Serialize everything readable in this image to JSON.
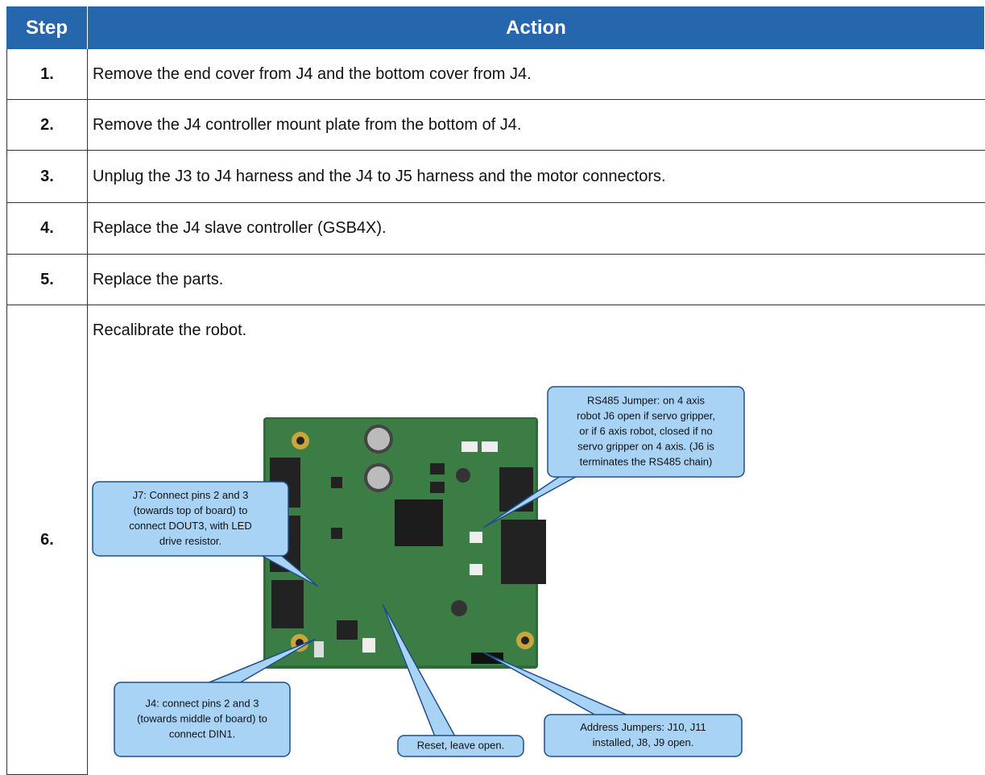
{
  "header": {
    "step": "Step",
    "action": "Action"
  },
  "rows": [
    {
      "step": "1.",
      "action": "Remove the end cover from J4 and the bottom cover from J4."
    },
    {
      "step": "2.",
      "action": "Remove the J4 controller mount plate from the bottom of J4."
    },
    {
      "step": "3.",
      "action": "Unplug the J3 to J4 harness and the J4 to J5 harness and the motor connectors."
    },
    {
      "step": "4.",
      "action": "Replace the J4 slave controller (GSB4X)."
    },
    {
      "step": "5.",
      "action": "Replace the parts."
    },
    {
      "step": "6.",
      "action": "Recalibrate the robot."
    }
  ],
  "callouts": [
    {
      "lines": [
        "RS485 Jumper: on 4 axis",
        "robot J6 open if servo gripper,",
        "or if 6 axis robot,  closed if no",
        "servo gripper on 4 axis.  (J6 is",
        "terminates the RS485 chain)"
      ]
    },
    {
      "lines": [
        "J7: Connect pins 2 and 3",
        "(towards top of board) to",
        "connect DOUT3, with LED",
        "drive resistor."
      ]
    },
    {
      "lines": [
        "J4: connect pins 2 and 3",
        "(towards middle of board) to",
        "connect DIN1."
      ]
    },
    {
      "lines": [
        "Reset, leave open."
      ]
    },
    {
      "lines": [
        "Address Jumpers: J10, J11",
        "installed, J8, J9 open."
      ]
    }
  ]
}
